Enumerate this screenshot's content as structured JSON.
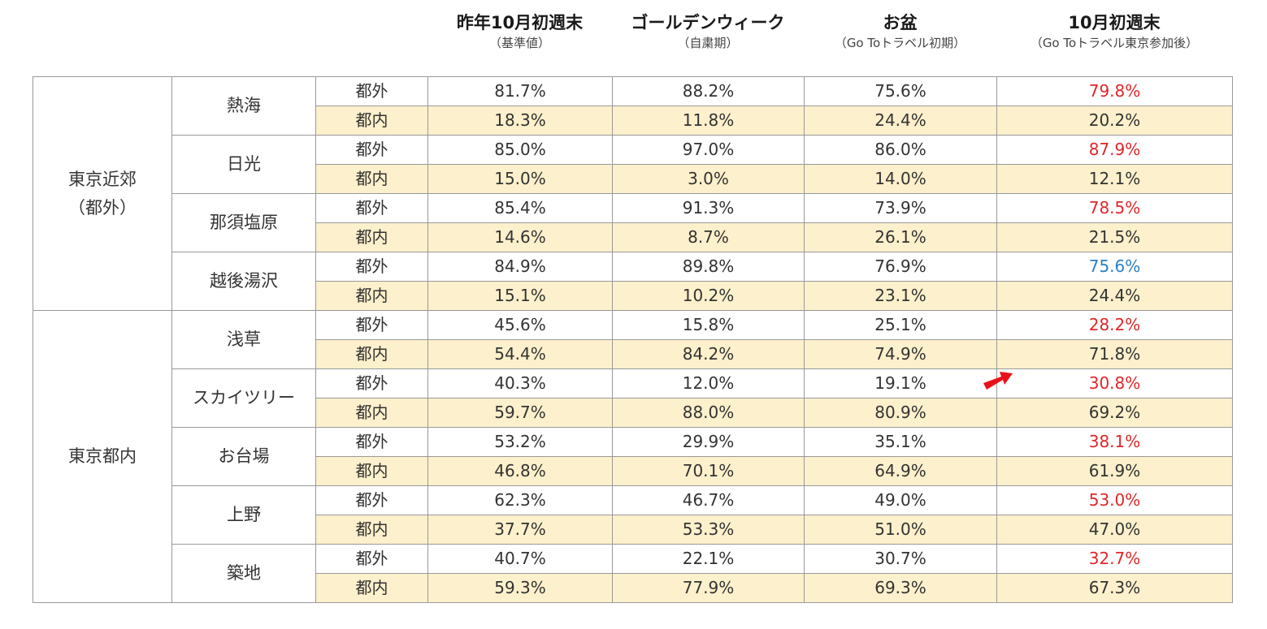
{
  "colors": {
    "increase": "#e0262a",
    "decrease": "#2b7fc2",
    "tokyo_resident_row_bg": "#fdf0cc",
    "arrow": "#e8111a"
  },
  "headers": [
    {
      "title": "昨年10月初週末",
      "sub": "（基準値）"
    },
    {
      "title": "ゴールデンウィーク",
      "sub": "（自粛期）"
    },
    {
      "title": "お盆",
      "sub": "（Go Toトラベル初期）"
    },
    {
      "title": "10月初週末",
      "sub": "（Go Toトラベル東京参加後）"
    }
  ],
  "regions": [
    {
      "name_line1": "東京近郊",
      "name_line2": "（都外）",
      "locations": [
        {
          "name": "熱海",
          "rows": [
            {
              "type": "都外",
              "values": [
                "81.7%",
                "88.2%",
                "75.6%",
                "79.8%"
              ],
              "last_trend": "up"
            },
            {
              "type": "都内",
              "values": [
                "18.3%",
                "11.8%",
                "24.4%",
                "20.2%"
              ],
              "last_trend": ""
            }
          ]
        },
        {
          "name": "日光",
          "rows": [
            {
              "type": "都外",
              "values": [
                "85.0%",
                "97.0%",
                "86.0%",
                "87.9%"
              ],
              "last_trend": "up"
            },
            {
              "type": "都内",
              "values": [
                "15.0%",
                "3.0%",
                "14.0%",
                "12.1%"
              ],
              "last_trend": ""
            }
          ]
        },
        {
          "name": "那須塩原",
          "rows": [
            {
              "type": "都外",
              "values": [
                "85.4%",
                "91.3%",
                "73.9%",
                "78.5%"
              ],
              "last_trend": "up"
            },
            {
              "type": "都内",
              "values": [
                "14.6%",
                "8.7%",
                "26.1%",
                "21.5%"
              ],
              "last_trend": ""
            }
          ]
        },
        {
          "name": "越後湯沢",
          "rows": [
            {
              "type": "都外",
              "values": [
                "84.9%",
                "89.8%",
                "76.9%",
                "75.6%"
              ],
              "last_trend": "down"
            },
            {
              "type": "都内",
              "values": [
                "15.1%",
                "10.2%",
                "23.1%",
                "24.4%"
              ],
              "last_trend": ""
            }
          ]
        }
      ]
    },
    {
      "name_line1": "東京都内",
      "name_line2": "",
      "locations": [
        {
          "name": "浅草",
          "rows": [
            {
              "type": "都外",
              "values": [
                "45.6%",
                "15.8%",
                "25.1%",
                "28.2%"
              ],
              "last_trend": "up"
            },
            {
              "type": "都内",
              "values": [
                "54.4%",
                "84.2%",
                "74.9%",
                "71.8%"
              ],
              "last_trend": ""
            }
          ]
        },
        {
          "name": "スカイツリー",
          "rows": [
            {
              "type": "都外",
              "values": [
                "40.3%",
                "12.0%",
                "19.1%",
                "30.8%"
              ],
              "last_trend": "up"
            },
            {
              "type": "都内",
              "values": [
                "59.7%",
                "88.0%",
                "80.9%",
                "69.2%"
              ],
              "last_trend": ""
            }
          ]
        },
        {
          "name": "お台場",
          "rows": [
            {
              "type": "都外",
              "values": [
                "53.2%",
                "29.9%",
                "35.1%",
                "38.1%"
              ],
              "last_trend": "up"
            },
            {
              "type": "都内",
              "values": [
                "46.8%",
                "70.1%",
                "64.9%",
                "61.9%"
              ],
              "last_trend": ""
            }
          ]
        },
        {
          "name": "上野",
          "rows": [
            {
              "type": "都外",
              "values": [
                "62.3%",
                "46.7%",
                "49.0%",
                "53.0%"
              ],
              "last_trend": "up"
            },
            {
              "type": "都内",
              "values": [
                "37.7%",
                "53.3%",
                "51.0%",
                "47.0%"
              ],
              "last_trend": ""
            }
          ]
        },
        {
          "name": "築地",
          "rows": [
            {
              "type": "都外",
              "values": [
                "40.7%",
                "22.1%",
                "30.7%",
                "32.7%"
              ],
              "last_trend": "up"
            },
            {
              "type": "都内",
              "values": [
                "59.3%",
                "77.9%",
                "69.3%",
                "67.3%"
              ],
              "last_trend": ""
            }
          ]
        }
      ]
    }
  ]
}
